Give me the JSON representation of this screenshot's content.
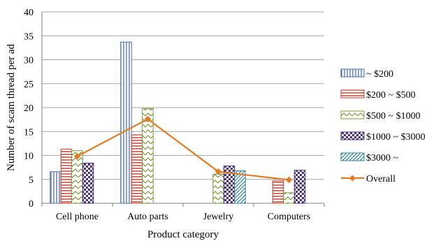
{
  "chart_data": {
    "type": "bar",
    "categories": [
      "Cell phone",
      "Auto parts",
      "Jewelry",
      "Computers"
    ],
    "series": [
      {
        "name": "~ $200",
        "values": [
          6.6,
          33.7,
          null,
          null
        ],
        "color": "#4a6fb0",
        "pattern": "vertical-lines"
      },
      {
        "name": "$200 ~ $500",
        "values": [
          11.3,
          14.3,
          null,
          4.7
        ],
        "color": "#c0392b",
        "pattern": "horizontal-lines"
      },
      {
        "name": "$500 ~ $1000",
        "values": [
          11.0,
          19.8,
          6.1,
          2.2
        ],
        "color": "#7a9a3a",
        "pattern": "zigzag"
      },
      {
        "name": "$1000 ~ $3000",
        "values": [
          8.4,
          null,
          7.8,
          6.9
        ],
        "color": "#4b2e83",
        "pattern": "checker"
      },
      {
        "name": "$3000 ~",
        "values": [
          null,
          null,
          6.8,
          null
        ],
        "color": "#31849b",
        "pattern": "diagonal"
      }
    ],
    "line_series": {
      "name": "Overall",
      "values": [
        9.8,
        17.6,
        6.6,
        4.9
      ],
      "color": "#e07b24"
    },
    "xlabel": "Product category",
    "ylabel": "Number of scam thread per ad",
    "ylim": [
      0,
      40
    ],
    "yticks": [
      0,
      5,
      10,
      15,
      20,
      25,
      30,
      35,
      40
    ],
    "grid": true,
    "legend_position": "right"
  }
}
